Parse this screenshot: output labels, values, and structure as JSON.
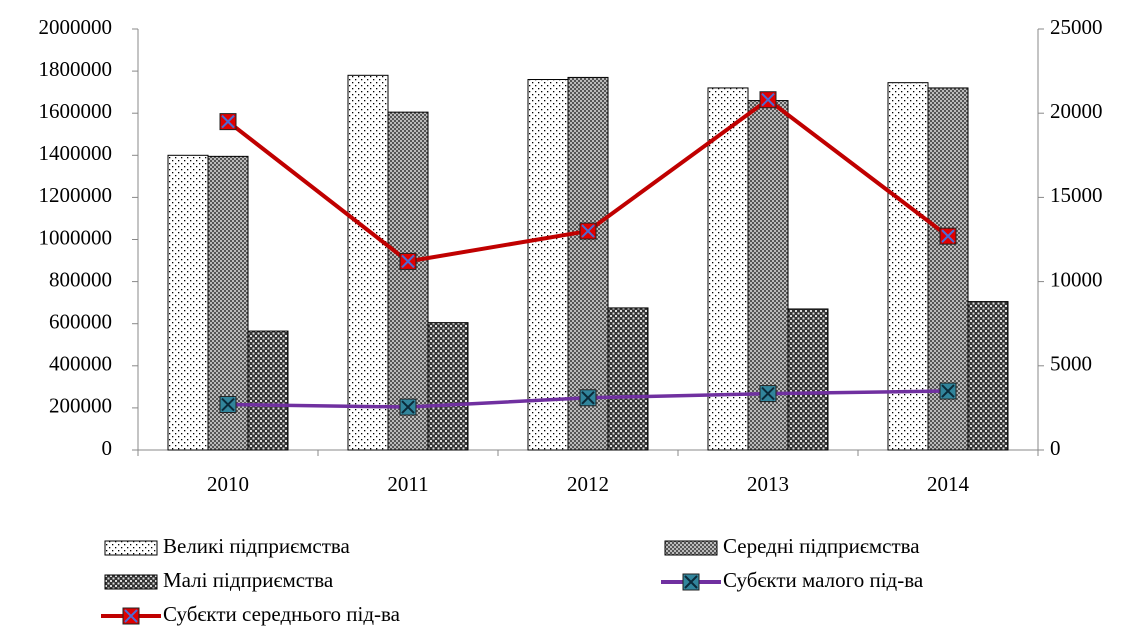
{
  "chart_data": {
    "type": "bar",
    "categories": [
      "2010",
      "2011",
      "2012",
      "2013",
      "2014"
    ],
    "series": [
      {
        "name": "Великі підприємства",
        "type": "bar",
        "pattern": "dots",
        "color": "#000000",
        "values": [
          1400000,
          1780000,
          1760000,
          1720000,
          1745000
        ]
      },
      {
        "name": "Середні підприємства",
        "type": "bar",
        "pattern": "dense-crosshatch",
        "color": "#000000",
        "values": [
          1395000,
          1605000,
          1770000,
          1660000,
          1720000
        ]
      },
      {
        "name": "Малі підприємства",
        "type": "bar",
        "pattern": "crosshatch",
        "color": "#000000",
        "values": [
          565000,
          605000,
          675000,
          670000,
          705000
        ]
      },
      {
        "name": "Субєкти малого під-ва",
        "type": "line",
        "axis": "y2",
        "color": "#7030a0",
        "marker_color": "#31859c",
        "values": [
          2700,
          2550,
          3100,
          3350,
          3500
        ]
      },
      {
        "name": "Субєкти середнього під-ва",
        "type": "line",
        "axis": "y2",
        "color": "#c00000",
        "marker_color": "#e00000",
        "values": [
          19500,
          11200,
          13000,
          20800,
          12700
        ]
      }
    ],
    "ylim": [
      0,
      2000000
    ],
    "yticks": [
      0,
      200000,
      400000,
      600000,
      800000,
      1000000,
      1200000,
      1400000,
      1600000,
      1800000,
      2000000
    ],
    "y2lim": [
      0,
      25000
    ],
    "y2ticks": [
      0,
      5000,
      10000,
      15000,
      20000,
      25000
    ],
    "legend": "bottom"
  }
}
